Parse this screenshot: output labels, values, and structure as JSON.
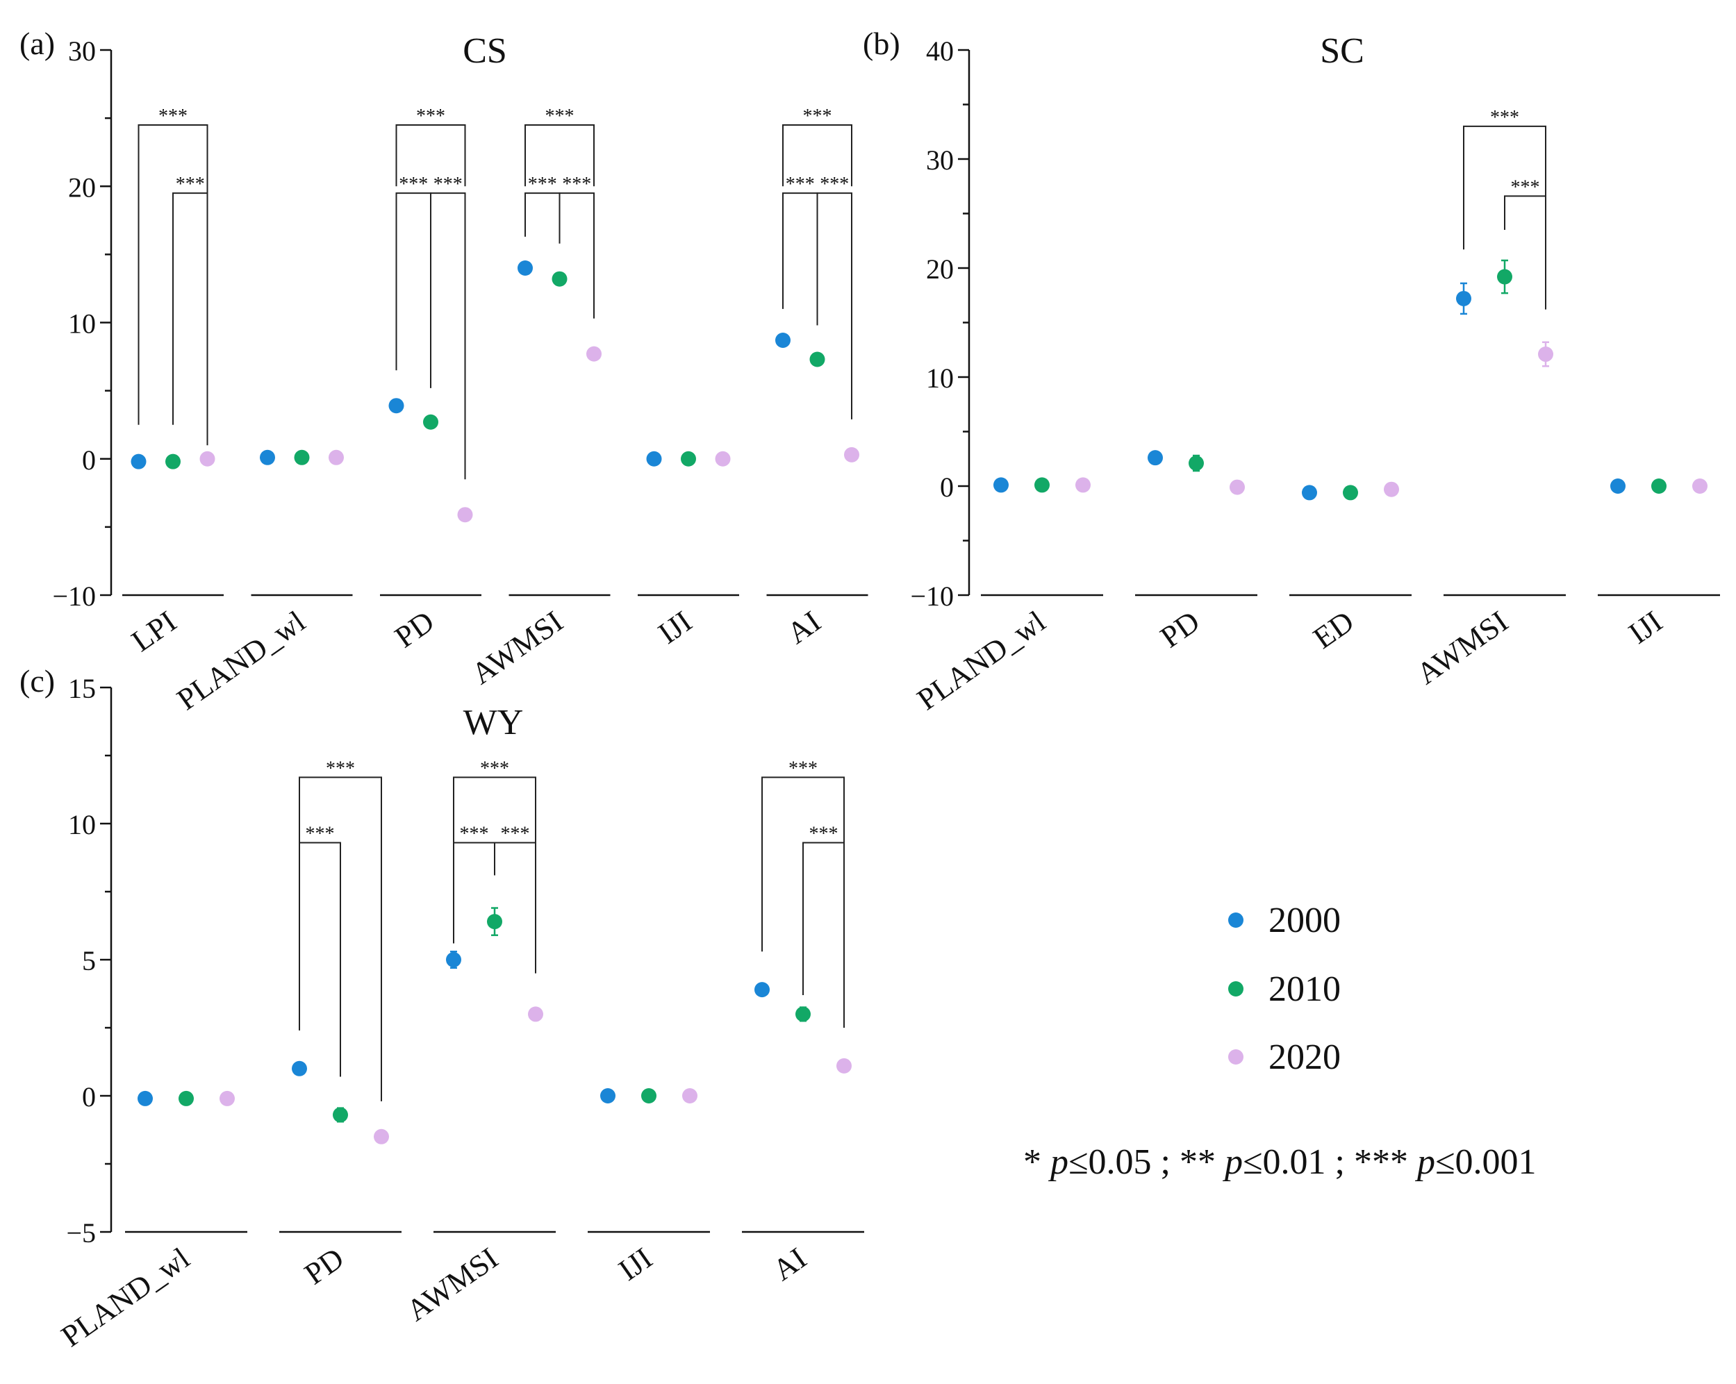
{
  "legend": {
    "items": [
      {
        "label": "2000",
        "color": "#1a86d6"
      },
      {
        "label": "2010",
        "color": "#12a866"
      },
      {
        "label": "2020",
        "color": "#dcb2ea"
      }
    ],
    "note": {
      "p1": "p",
      "t1": "≤0.05 ; ** ",
      "p2": "p",
      "t2": "≤0.01 ; *** ",
      "p3": "p",
      "t3": "≤0.001",
      "prefix": "* "
    }
  },
  "chart_data": [
    {
      "type": "scatter",
      "panel_label": "(a)",
      "title": "CS",
      "ylim": [
        -10,
        30
      ],
      "yticks": [
        -10,
        0,
        10,
        20,
        30
      ],
      "ytick_labels": [
        "−10",
        "0",
        "10",
        "20",
        "30"
      ],
      "categories": [
        "LPI",
        "PLAND_wl",
        "PD",
        "AWMSI",
        "IJI",
        "AI"
      ],
      "series": [
        {
          "name": "2000",
          "values": [
            -0.2,
            0.1,
            3.9,
            14.0,
            0.0,
            8.7
          ],
          "errors": [
            0,
            0,
            0,
            0,
            0,
            0
          ]
        },
        {
          "name": "2010",
          "values": [
            -0.2,
            0.1,
            2.7,
            13.2,
            0.0,
            7.3
          ],
          "errors": [
            0,
            0,
            0,
            0,
            0,
            0
          ]
        },
        {
          "name": "2020",
          "values": [
            0.0,
            0.1,
            -4.1,
            7.7,
            0.0,
            0.3
          ],
          "errors": [
            0,
            0,
            0,
            0,
            0,
            0
          ]
        }
      ],
      "brackets": [
        {
          "cat": 0,
          "a": 0,
          "b": 2,
          "y": 24.5,
          "leftEnd": 2.5,
          "rightEnd": 1.0,
          "label": "***"
        },
        {
          "cat": 0,
          "a": 1,
          "b": 2,
          "y": 19.5,
          "leftEnd": 2.5,
          "rightEnd": 1.0,
          "label": "***"
        },
        {
          "cat": 2,
          "a": 0,
          "b": 2,
          "y": 24.5,
          "leftEnd": 20.0,
          "rightEnd": 20.0,
          "label": "***"
        },
        {
          "cat": 2,
          "a": 0,
          "b": 1,
          "y": 19.5,
          "leftEnd": 6.5,
          "rightEnd": 5.2,
          "label": "***"
        },
        {
          "cat": 2,
          "a": 1,
          "b": 2,
          "y": 19.5,
          "leftEnd": 5.2,
          "rightEnd": -1.5,
          "label": "***"
        },
        {
          "cat": 3,
          "a": 0,
          "b": 2,
          "y": 24.5,
          "leftEnd": 20.0,
          "rightEnd": 20.0,
          "label": "***"
        },
        {
          "cat": 3,
          "a": 0,
          "b": 1,
          "y": 19.5,
          "leftEnd": 16.3,
          "rightEnd": 15.8,
          "label": "***"
        },
        {
          "cat": 3,
          "a": 1,
          "b": 2,
          "y": 19.5,
          "leftEnd": 15.8,
          "rightEnd": 10.3,
          "label": "***"
        },
        {
          "cat": 5,
          "a": 0,
          "b": 2,
          "y": 24.5,
          "leftEnd": 20.0,
          "rightEnd": 20.0,
          "label": "***"
        },
        {
          "cat": 5,
          "a": 0,
          "b": 1,
          "y": 19.5,
          "leftEnd": 11.0,
          "rightEnd": 9.8,
          "label": "***"
        },
        {
          "cat": 5,
          "a": 1,
          "b": 2,
          "y": 19.5,
          "leftEnd": 9.8,
          "rightEnd": 2.9,
          "label": "***"
        }
      ]
    },
    {
      "type": "scatter",
      "panel_label": "(b)",
      "title": "SC",
      "ylim": [
        -10,
        40
      ],
      "yticks": [
        -10,
        0,
        10,
        20,
        30,
        40
      ],
      "ytick_labels": [
        "−10",
        "0",
        "10",
        "20",
        "30",
        "40"
      ],
      "categories": [
        "PLAND_wl",
        "PD",
        "ED",
        "AWMSI",
        "IJI"
      ],
      "series": [
        {
          "name": "2000",
          "values": [
            0.1,
            2.6,
            -0.6,
            17.2,
            0.0
          ],
          "errors": [
            0,
            0,
            0,
            1.4,
            0
          ]
        },
        {
          "name": "2010",
          "values": [
            0.1,
            2.1,
            -0.6,
            19.2,
            0.0
          ],
          "errors": [
            0,
            0.7,
            0,
            1.5,
            0
          ]
        },
        {
          "name": "2020",
          "values": [
            0.1,
            -0.1,
            -0.3,
            12.1,
            0.0
          ],
          "errors": [
            0,
            0,
            0,
            1.1,
            0
          ]
        }
      ],
      "brackets": [
        {
          "cat": 3,
          "a": 0,
          "b": 2,
          "y": 33.0,
          "leftEnd": 21.7,
          "rightEnd": 26.6,
          "label": "***"
        },
        {
          "cat": 3,
          "a": 1,
          "b": 2,
          "y": 26.6,
          "leftEnd": 23.5,
          "rightEnd": 16.2,
          "label": "***"
        }
      ]
    },
    {
      "type": "scatter",
      "panel_label": "(c)",
      "title": "WY",
      "ylim": [
        -5,
        15
      ],
      "yticks": [
        -5,
        0,
        5,
        10,
        15
      ],
      "ytick_labels": [
        "−5",
        "0",
        "5",
        "10",
        "15"
      ],
      "categories": [
        "PLAND_wl",
        "PD",
        "AWMSI",
        "IJI",
        "AI"
      ],
      "series": [
        {
          "name": "2000",
          "values": [
            -0.1,
            1.0,
            5.0,
            0.0,
            3.9
          ],
          "errors": [
            0,
            0,
            0.3,
            0,
            0
          ]
        },
        {
          "name": "2010",
          "values": [
            -0.1,
            -0.7,
            6.4,
            0.0,
            3.0
          ],
          "errors": [
            0,
            0.25,
            0.5,
            0,
            0.25
          ]
        },
        {
          "name": "2020",
          "values": [
            -0.1,
            -1.5,
            3.0,
            0.0,
            1.1
          ],
          "errors": [
            0,
            0,
            0,
            0,
            0
          ]
        }
      ],
      "brackets": [
        {
          "cat": 1,
          "a": 0,
          "b": 2,
          "y": 11.7,
          "leftEnd": 9.3,
          "rightEnd": -0.2,
          "label": "***"
        },
        {
          "cat": 1,
          "a": 0,
          "b": 1,
          "y": 9.3,
          "leftEnd": 2.4,
          "rightEnd": 0.7,
          "label": "***"
        },
        {
          "cat": 2,
          "a": 0,
          "b": 2,
          "y": 11.7,
          "leftEnd": 9.3,
          "rightEnd": 9.3,
          "label": "***"
        },
        {
          "cat": 2,
          "a": 0,
          "b": 1,
          "y": 9.3,
          "leftEnd": 5.6,
          "rightEnd": 8.1,
          "label": "***"
        },
        {
          "cat": 2,
          "a": 1,
          "b": 2,
          "y": 9.3,
          "leftEnd": 8.1,
          "rightEnd": 4.5,
          "label": "***"
        },
        {
          "cat": 4,
          "a": 0,
          "b": 2,
          "y": 11.7,
          "leftEnd": 5.3,
          "rightEnd": 9.3,
          "label": "***"
        },
        {
          "cat": 4,
          "a": 1,
          "b": 2,
          "y": 9.3,
          "leftEnd": 3.7,
          "rightEnd": 2.5,
          "label": "***"
        }
      ]
    }
  ]
}
